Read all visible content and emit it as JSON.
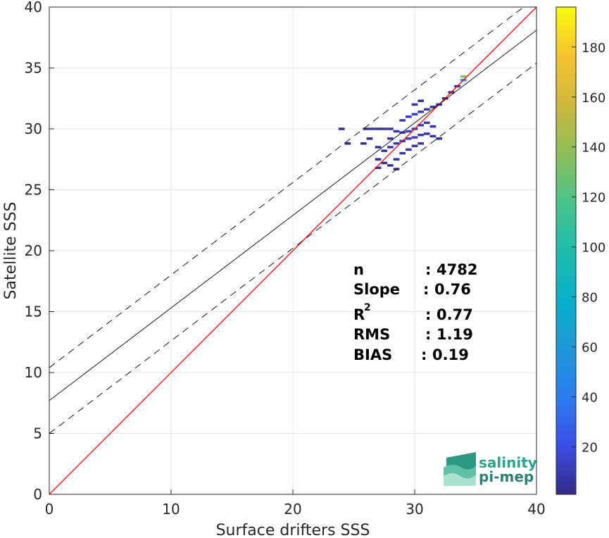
{
  "chart_data": {
    "type": "heatmap",
    "xlabel": "Surface drifters SSS",
    "ylabel": "Satellite SSS",
    "xlim": [
      0,
      40
    ],
    "ylim": [
      0,
      40
    ],
    "x_ticks": [
      0,
      10,
      20,
      30,
      40
    ],
    "y_ticks": [
      0,
      5,
      10,
      15,
      20,
      25,
      30,
      35,
      40
    ],
    "grid": true,
    "colorbar": {
      "range": [
        1,
        196
      ],
      "ticks": [
        20,
        40,
        60,
        80,
        100,
        120,
        140,
        160,
        180
      ],
      "colormap": "parula"
    },
    "lines": [
      {
        "kind": "identity",
        "color": "#ff0000",
        "slope": 1,
        "intercept": 0
      },
      {
        "kind": "regression",
        "color": "#000000",
        "slope": 0.76,
        "intercept": 7.7
      },
      {
        "kind": "regression-upper",
        "color": "#000000",
        "dashed": true,
        "slope": 0.76,
        "intercept": 10.4
      },
      {
        "kind": "regression-lower",
        "color": "#000000",
        "dashed": true,
        "slope": 0.76,
        "intercept": 5.0
      }
    ],
    "density_cells": [
      {
        "x": 26.0,
        "y": 30.0,
        "count": 3
      },
      {
        "x": 26.5,
        "y": 30.0,
        "count": 4
      },
      {
        "x": 27.0,
        "y": 30.0,
        "count": 5
      },
      {
        "x": 27.5,
        "y": 30.0,
        "count": 6
      },
      {
        "x": 28.0,
        "y": 30.0,
        "count": 7
      },
      {
        "x": 28.5,
        "y": 29.8,
        "count": 8
      },
      {
        "x": 29.0,
        "y": 29.7,
        "count": 10
      },
      {
        "x": 29.5,
        "y": 29.8,
        "count": 12
      },
      {
        "x": 30.0,
        "y": 30.0,
        "count": 14
      },
      {
        "x": 30.5,
        "y": 30.3,
        "count": 12
      },
      {
        "x": 31.0,
        "y": 30.5,
        "count": 9
      },
      {
        "x": 31.5,
        "y": 30.2,
        "count": 6
      },
      {
        "x": 27.0,
        "y": 28.5,
        "count": 4
      },
      {
        "x": 27.5,
        "y": 28.2,
        "count": 5
      },
      {
        "x": 28.0,
        "y": 28.5,
        "count": 7
      },
      {
        "x": 28.5,
        "y": 28.8,
        "count": 9
      },
      {
        "x": 29.0,
        "y": 29.0,
        "count": 12
      },
      {
        "x": 29.5,
        "y": 29.2,
        "count": 14
      },
      {
        "x": 30.0,
        "y": 29.3,
        "count": 12
      },
      {
        "x": 30.5,
        "y": 29.5,
        "count": 9
      },
      {
        "x": 31.0,
        "y": 29.6,
        "count": 7
      },
      {
        "x": 31.5,
        "y": 29.4,
        "count": 5
      },
      {
        "x": 32.0,
        "y": 29.2,
        "count": 3
      },
      {
        "x": 28.5,
        "y": 27.5,
        "count": 4
      },
      {
        "x": 29.0,
        "y": 28.0,
        "count": 6
      },
      {
        "x": 29.5,
        "y": 28.3,
        "count": 8
      },
      {
        "x": 30.0,
        "y": 28.6,
        "count": 6
      },
      {
        "x": 30.5,
        "y": 28.8,
        "count": 5
      },
      {
        "x": 27.5,
        "y": 27.2,
        "count": 3
      },
      {
        "x": 28.0,
        "y": 27.0,
        "count": 3
      },
      {
        "x": 28.5,
        "y": 26.7,
        "count": 2
      },
      {
        "x": 27.0,
        "y": 26.8,
        "count": 2
      },
      {
        "x": 29.0,
        "y": 30.7,
        "count": 9
      },
      {
        "x": 29.5,
        "y": 31.0,
        "count": 11
      },
      {
        "x": 30.0,
        "y": 31.2,
        "count": 13
      },
      {
        "x": 30.5,
        "y": 31.4,
        "count": 10
      },
      {
        "x": 31.0,
        "y": 31.6,
        "count": 8
      },
      {
        "x": 31.5,
        "y": 31.8,
        "count": 6
      },
      {
        "x": 32.0,
        "y": 32.0,
        "count": 4
      },
      {
        "x": 30.0,
        "y": 32.0,
        "count": 5
      },
      {
        "x": 30.5,
        "y": 32.3,
        "count": 4
      },
      {
        "x": 32.5,
        "y": 32.5,
        "count": 3
      },
      {
        "x": 33.0,
        "y": 33.0,
        "count": 3
      },
      {
        "x": 33.5,
        "y": 33.5,
        "count": 4
      },
      {
        "x": 34.0,
        "y": 34.0,
        "count": 60
      },
      {
        "x": 34.0,
        "y": 34.3,
        "count": 140
      },
      {
        "x": 25.8,
        "y": 28.8,
        "count": 2
      },
      {
        "x": 26.3,
        "y": 29.2,
        "count": 2
      },
      {
        "x": 24.5,
        "y": 28.8,
        "count": 1
      },
      {
        "x": 24.0,
        "y": 30.0,
        "count": 1
      },
      {
        "x": 27.0,
        "y": 27.5,
        "count": 3
      },
      {
        "x": 28.0,
        "y": 29.2,
        "count": 8
      }
    ]
  },
  "stats": {
    "rows": [
      {
        "label": "n",
        "sep": ":",
        "value": "4782"
      },
      {
        "label": "Slope",
        "sep": ":",
        "value": "0.76"
      },
      {
        "label": "R",
        "sup": "2",
        "sep": ":",
        "value": "0.77"
      },
      {
        "label": "RMS",
        "sep": ":",
        "value": "1.19"
      },
      {
        "label": "BIAS",
        "sep": ":",
        "value": "0.19"
      }
    ]
  },
  "logo": {
    "line1": "salinity",
    "line2": "pi-mep",
    "icon": "salinity-waves-icon"
  }
}
